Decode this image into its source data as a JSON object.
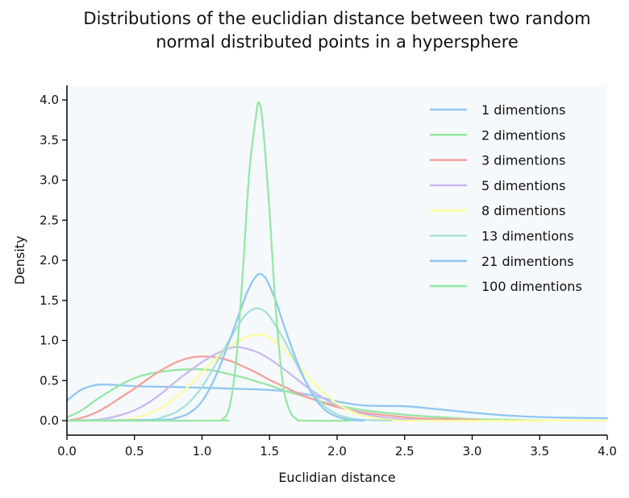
{
  "chart_data": {
    "type": "line",
    "title_lines": [
      "Distributions of the euclidian distance between two random",
      "normal distributed points in a hypersphere"
    ],
    "xlabel": "Euclidian distance",
    "ylabel": "Density",
    "xlim": [
      0.0,
      4.0
    ],
    "ylim": [
      -0.2,
      4.15
    ],
    "xticks": [
      0.0,
      0.5,
      1.0,
      1.5,
      2.0,
      2.5,
      3.0,
      3.5,
      4.0
    ],
    "xtick_labels": [
      "0.0",
      "0.5",
      "1.0",
      "1.5",
      "2.0",
      "2.5",
      "3.0",
      "3.5",
      "4.0"
    ],
    "yticks": [
      0.0,
      0.5,
      1.0,
      1.5,
      2.0,
      2.5,
      3.0,
      3.5,
      4.0
    ],
    "ytick_labels": [
      "0.0",
      "0.5",
      "1.0",
      "1.5",
      "2.0",
      "2.5",
      "3.0",
      "3.5",
      "4.0"
    ],
    "grid": false,
    "legend_position": "top-right",
    "plot_background": "#f5f9fc",
    "series": [
      {
        "name": "1 dimentions",
        "color": "#92c6f0",
        "points": [
          [
            0.0,
            0.25
          ],
          [
            0.1,
            0.38
          ],
          [
            0.2,
            0.44
          ],
          [
            0.3,
            0.45
          ],
          [
            0.5,
            0.43
          ],
          [
            0.8,
            0.42
          ],
          [
            1.0,
            0.41
          ],
          [
            1.2,
            0.4
          ],
          [
            1.4,
            0.39
          ],
          [
            1.6,
            0.37
          ],
          [
            1.8,
            0.32
          ],
          [
            2.0,
            0.24
          ],
          [
            2.2,
            0.19
          ],
          [
            2.5,
            0.18
          ],
          [
            2.7,
            0.15
          ],
          [
            3.0,
            0.1
          ],
          [
            3.3,
            0.06
          ],
          [
            3.6,
            0.04
          ],
          [
            4.0,
            0.03
          ]
        ]
      },
      {
        "name": "2 dimentions",
        "color": "#96e7a4",
        "points": [
          [
            0.0,
            0.04
          ],
          [
            0.1,
            0.12
          ],
          [
            0.2,
            0.24
          ],
          [
            0.3,
            0.35
          ],
          [
            0.4,
            0.45
          ],
          [
            0.5,
            0.53
          ],
          [
            0.6,
            0.58
          ],
          [
            0.7,
            0.61
          ],
          [
            0.8,
            0.63
          ],
          [
            0.9,
            0.64
          ],
          [
            1.0,
            0.64
          ],
          [
            1.1,
            0.62
          ],
          [
            1.2,
            0.58
          ],
          [
            1.3,
            0.54
          ],
          [
            1.4,
            0.49
          ],
          [
            1.5,
            0.44
          ],
          [
            1.6,
            0.38
          ],
          [
            1.7,
            0.33
          ],
          [
            1.8,
            0.28
          ],
          [
            1.9,
            0.23
          ],
          [
            2.0,
            0.19
          ],
          [
            2.2,
            0.13
          ],
          [
            2.4,
            0.09
          ],
          [
            2.6,
            0.06
          ],
          [
            2.8,
            0.04
          ],
          [
            3.0,
            0.02
          ],
          [
            3.3,
            0.01
          ],
          [
            3.55,
            0.0
          ]
        ]
      },
      {
        "name": "3 dimentions",
        "color": "#f4a19b",
        "points": [
          [
            0.0,
            0.0
          ],
          [
            0.1,
            0.03
          ],
          [
            0.2,
            0.09
          ],
          [
            0.3,
            0.18
          ],
          [
            0.4,
            0.29
          ],
          [
            0.5,
            0.4
          ],
          [
            0.6,
            0.52
          ],
          [
            0.7,
            0.63
          ],
          [
            0.8,
            0.72
          ],
          [
            0.9,
            0.78
          ],
          [
            1.0,
            0.8
          ],
          [
            1.1,
            0.79
          ],
          [
            1.2,
            0.75
          ],
          [
            1.3,
            0.68
          ],
          [
            1.4,
            0.6
          ],
          [
            1.5,
            0.51
          ],
          [
            1.6,
            0.43
          ],
          [
            1.7,
            0.35
          ],
          [
            1.8,
            0.28
          ],
          [
            1.9,
            0.22
          ],
          [
            2.0,
            0.17
          ],
          [
            2.2,
            0.1
          ],
          [
            2.4,
            0.06
          ],
          [
            2.6,
            0.03
          ],
          [
            2.8,
            0.02
          ],
          [
            3.0,
            0.01
          ],
          [
            3.1,
            0.0
          ]
        ]
      },
      {
        "name": "5 dimentions",
        "color": "#cbb9ef",
        "points": [
          [
            0.0,
            0.0
          ],
          [
            0.2,
            0.01
          ],
          [
            0.3,
            0.03
          ],
          [
            0.4,
            0.07
          ],
          [
            0.5,
            0.13
          ],
          [
            0.6,
            0.22
          ],
          [
            0.7,
            0.34
          ],
          [
            0.8,
            0.48
          ],
          [
            0.9,
            0.61
          ],
          [
            1.0,
            0.73
          ],
          [
            1.1,
            0.83
          ],
          [
            1.2,
            0.9
          ],
          [
            1.25,
            0.92
          ],
          [
            1.3,
            0.91
          ],
          [
            1.4,
            0.86
          ],
          [
            1.5,
            0.77
          ],
          [
            1.6,
            0.65
          ],
          [
            1.7,
            0.52
          ],
          [
            1.8,
            0.39
          ],
          [
            1.9,
            0.28
          ],
          [
            2.0,
            0.19
          ],
          [
            2.2,
            0.08
          ],
          [
            2.4,
            0.03
          ],
          [
            2.6,
            0.01
          ],
          [
            2.8,
            0.0
          ]
        ]
      },
      {
        "name": "8 dimentions",
        "color": "#fdfb9f",
        "points": [
          [
            0.0,
            0.0
          ],
          [
            0.4,
            0.01
          ],
          [
            0.5,
            0.03
          ],
          [
            0.6,
            0.08
          ],
          [
            0.7,
            0.16
          ],
          [
            0.8,
            0.28
          ],
          [
            0.9,
            0.43
          ],
          [
            1.0,
            0.6
          ],
          [
            1.1,
            0.77
          ],
          [
            1.2,
            0.92
          ],
          [
            1.3,
            1.02
          ],
          [
            1.4,
            1.07
          ],
          [
            1.45,
            1.07
          ],
          [
            1.5,
            1.03
          ],
          [
            1.6,
            0.9
          ],
          [
            1.7,
            0.72
          ],
          [
            1.8,
            0.52
          ],
          [
            1.9,
            0.35
          ],
          [
            2.0,
            0.21
          ],
          [
            2.1,
            0.12
          ],
          [
            2.2,
            0.06
          ],
          [
            2.4,
            0.01
          ],
          [
            2.6,
            0.0
          ],
          [
            4.0,
            0.0
          ]
        ]
      },
      {
        "name": "13 dimentions",
        "color": "#a9e0da",
        "points": [
          [
            0.0,
            0.0
          ],
          [
            0.6,
            0.01
          ],
          [
            0.7,
            0.04
          ],
          [
            0.8,
            0.1
          ],
          [
            0.9,
            0.22
          ],
          [
            1.0,
            0.42
          ],
          [
            1.1,
            0.7
          ],
          [
            1.2,
            1.0
          ],
          [
            1.3,
            1.27
          ],
          [
            1.35,
            1.36
          ],
          [
            1.4,
            1.4
          ],
          [
            1.45,
            1.38
          ],
          [
            1.5,
            1.3
          ],
          [
            1.6,
            1.03
          ],
          [
            1.7,
            0.7
          ],
          [
            1.8,
            0.4
          ],
          [
            1.9,
            0.19
          ],
          [
            2.0,
            0.08
          ],
          [
            2.1,
            0.03
          ],
          [
            2.2,
            0.01
          ],
          [
            2.4,
            0.0
          ]
        ]
      },
      {
        "name": "21 dimentions",
        "color": "#92c6f0",
        "points": [
          [
            0.0,
            0.0
          ],
          [
            0.7,
            0.01
          ],
          [
            0.8,
            0.03
          ],
          [
            0.9,
            0.09
          ],
          [
            1.0,
            0.24
          ],
          [
            1.1,
            0.55
          ],
          [
            1.2,
            0.98
          ],
          [
            1.3,
            1.45
          ],
          [
            1.35,
            1.66
          ],
          [
            1.4,
            1.8
          ],
          [
            1.43,
            1.83
          ],
          [
            1.47,
            1.78
          ],
          [
            1.5,
            1.68
          ],
          [
            1.55,
            1.48
          ],
          [
            1.6,
            1.22
          ],
          [
            1.7,
            0.75
          ],
          [
            1.8,
            0.38
          ],
          [
            1.9,
            0.15
          ],
          [
            2.0,
            0.05
          ],
          [
            2.1,
            0.01
          ],
          [
            2.2,
            0.0
          ]
        ]
      },
      {
        "name": "100 dimentions",
        "color": "#96e7a4",
        "points": [
          [
            0.0,
            0.0
          ],
          [
            1.1,
            0.0
          ],
          [
            1.15,
            0.02
          ],
          [
            1.2,
            0.15
          ],
          [
            1.25,
            0.7
          ],
          [
            1.3,
            1.8
          ],
          [
            1.35,
            3.1
          ],
          [
            1.4,
            3.8
          ],
          [
            1.42,
            3.97
          ],
          [
            1.45,
            3.7
          ],
          [
            1.5,
            2.6
          ],
          [
            1.55,
            1.3
          ],
          [
            1.6,
            0.45
          ],
          [
            1.65,
            0.12
          ],
          [
            1.7,
            0.02
          ],
          [
            1.75,
            0.0
          ],
          [
            2.1,
            0.0
          ]
        ]
      }
    ]
  }
}
